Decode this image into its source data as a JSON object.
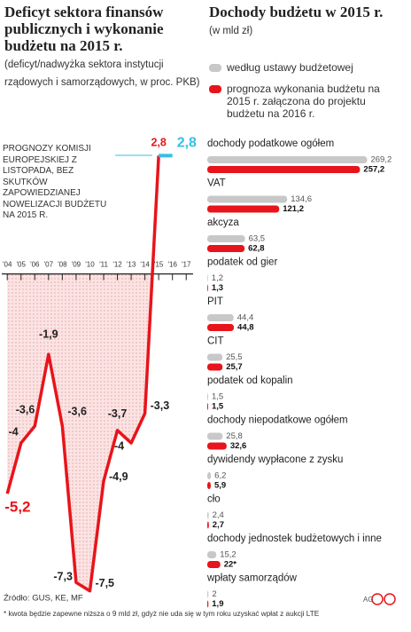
{
  "chart_data": [
    {
      "type": "line",
      "title": "Deficyt sektora finansów publicznych i wykonanie budżetu na 2015 r.",
      "subtitle": "(deficyt/nadwyżka sektora instytucji rządowych i samorządowych, w proc. PKB)",
      "annotation": "PROGNOZY KOMISJI EUROPEJSKIEJ Z LISTOPADA, BEZ SKUTKÓW ZAPOWIEDZIANEJ NOWELIZACJI BUDŻETU NA 2015 R.",
      "x": [
        4,
        5,
        6,
        7,
        8,
        9,
        10,
        11,
        12,
        13,
        14,
        15
      ],
      "values": [
        -5.2,
        -4,
        -3.6,
        -1.9,
        -3.6,
        -7.3,
        -7.5,
        -4.9,
        -3.7,
        -4,
        -3.3,
        2.8
      ],
      "value_labels": [
        "-5,2",
        "-4",
        "-3,6",
        "-1,9",
        "-3,6",
        "-7,3",
        "-7,5",
        "-4,9",
        "-3,7",
        "-4",
        "-3,3",
        "2,8"
      ],
      "color": "#e8141b",
      "forecast": {
        "x": [
          15,
          16
        ],
        "values": [
          2.8,
          2.8
        ],
        "value_label": "2,8",
        "color": "#35bfe6"
      },
      "xlim": [
        3.6,
        17.5
      ],
      "xticks": [
        {
          "value": 4,
          "label": "'04"
        },
        {
          "value": 5,
          "label": "'05"
        },
        {
          "value": 6,
          "label": "'06"
        },
        {
          "value": 7,
          "label": "'07"
        },
        {
          "value": 8,
          "label": "'08"
        },
        {
          "value": 9,
          "label": "'09"
        },
        {
          "value": 10,
          "label": "'10"
        },
        {
          "value": 11,
          "label": "'11"
        },
        {
          "value": 12,
          "label": "'12"
        },
        {
          "value": 13,
          "label": "'13"
        },
        {
          "value": 14,
          "label": "'14"
        },
        {
          "value": 15,
          "label": "'15"
        },
        {
          "value": 16,
          "label": "'16"
        },
        {
          "value": 17,
          "label": "'17"
        }
      ],
      "ylim": [
        -7.8,
        3.5
      ]
    },
    {
      "type": "hbar",
      "title": "Dochody budżetu w 2015 r.",
      "subtitle": "(w mld zł)",
      "categories": [
        "dochody podatkowe ogółem",
        "VAT",
        "akcyza",
        "podatek od gier",
        "PIT",
        "CIT",
        "podatek od kopalin",
        "dochody niepodatkowe ogółem",
        "dywidendy wypłacone z zysku",
        "cło",
        "dochody jednostek budżetowych i inne",
        "wpłaty samorządów"
      ],
      "series": [
        {
          "name": "według ustawy budżetowej",
          "color": "#c8c8c8",
          "values": [
            269.2,
            134.6,
            63.5,
            1.2,
            44.4,
            25.5,
            1.5,
            25.8,
            6.2,
            2.4,
            15.2,
            2
          ],
          "value_labels": [
            "269,2",
            "134,6",
            "63,5",
            "1,2",
            "44,4",
            "25,5",
            "1,5",
            "25,8",
            "6,2",
            "2,4",
            "15,2",
            "2"
          ]
        },
        {
          "name": "prognoza wykonania budżetu na 2015 r. załączona do projektu budżetu na 2016 r.",
          "color": "#e8141b",
          "values": [
            257.2,
            121.2,
            62.8,
            1.3,
            44.8,
            25.7,
            1.5,
            32.6,
            5.9,
            2.7,
            22,
            1.9
          ],
          "value_labels": [
            "257,2",
            "121,2",
            "62,8",
            "1,3",
            "44,8",
            "25,7",
            "1,5",
            "32,6",
            "5,9",
            "2,7",
            "22*",
            "1,9"
          ]
        }
      ],
      "xlim": [
        0,
        270
      ]
    }
  ],
  "footer": {
    "source": "Źródło: GUS, KE, MF",
    "note": "* kwota będzie zapewne niższa o 9 mld zł, gdyż nie uda się w tym roku uzyskać wpłat z aukcji LTE",
    "author": "AG"
  }
}
